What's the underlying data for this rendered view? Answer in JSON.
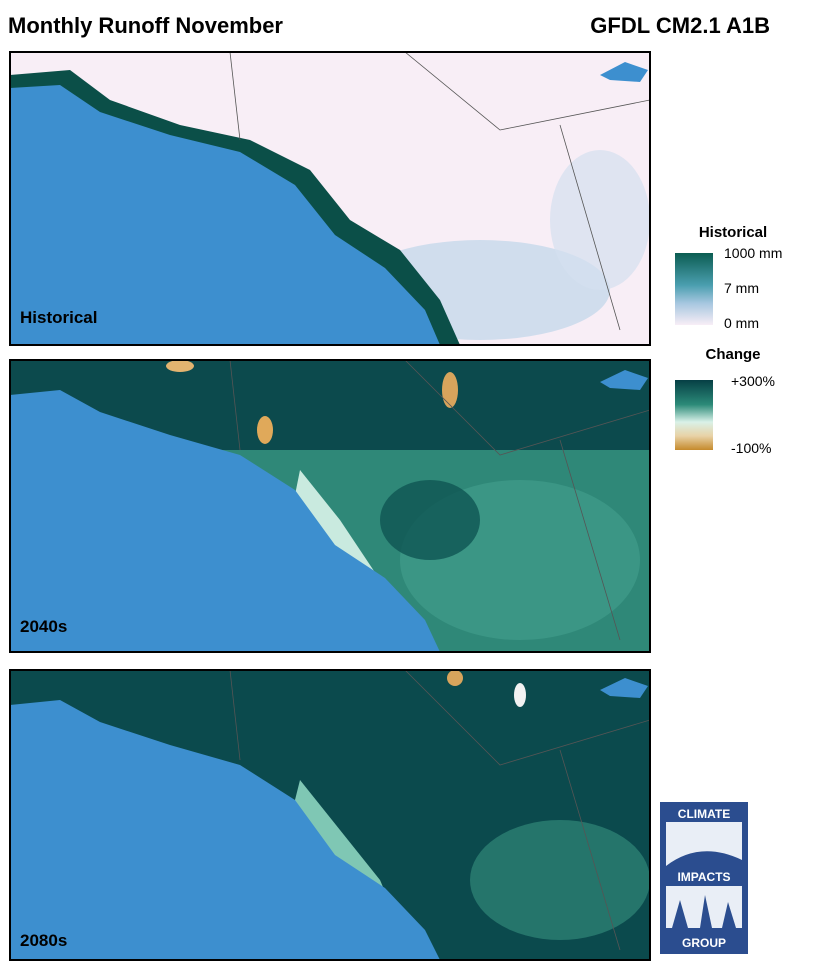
{
  "header": {
    "title": "Monthly Runoff November",
    "model": "GFDL CM2.1 A1B"
  },
  "panels": [
    {
      "label": "Historical"
    },
    {
      "label": "2040s"
    },
    {
      "label": "2080s"
    }
  ],
  "legend": {
    "historical": {
      "title": "Historical",
      "labels": [
        "1000 mm",
        "7 mm",
        "0 mm"
      ]
    },
    "change": {
      "title": "Change",
      "labels": [
        "+300%",
        "-100%"
      ]
    }
  },
  "logo": {
    "lines": [
      "CLIMATE",
      "IMPACTS",
      "GROUP"
    ]
  }
}
